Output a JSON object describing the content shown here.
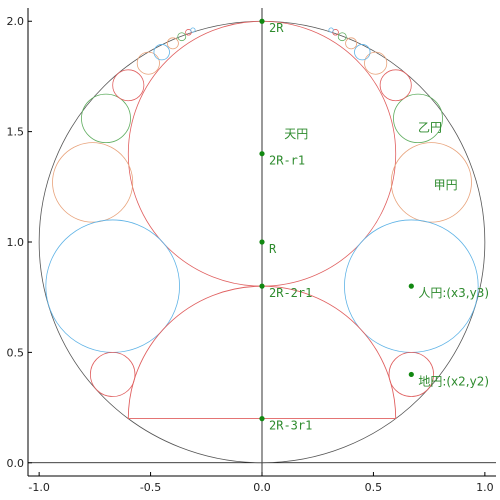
{
  "chart_data": {
    "type": "scatter",
    "title": "",
    "xlabel": "",
    "ylabel": "",
    "xlim": [
      -1.05,
      1.05
    ],
    "ylim": [
      -0.06,
      2.06
    ],
    "grid": false,
    "x_ticks": [
      {
        "value": -1.0,
        "label": "-1.0"
      },
      {
        "value": -0.5,
        "label": "-0.5"
      },
      {
        "value": 0.0,
        "label": "0.0"
      },
      {
        "value": 0.5,
        "label": "0.5"
      },
      {
        "value": 1.0,
        "label": "1.0"
      }
    ],
    "y_ticks": [
      {
        "value": 0.0,
        "label": "0.0"
      },
      {
        "value": 0.5,
        "label": "0.5"
      },
      {
        "value": 1.0,
        "label": "1.0"
      },
      {
        "value": 1.5,
        "label": "1.5"
      },
      {
        "value": 2.0,
        "label": "2.0"
      }
    ],
    "colors": {
      "outer": "#555555",
      "red": "#e06060",
      "blue": "#5fb3e6",
      "green": "#5fad5f",
      "orange": "#e8a27a",
      "point": "#118811",
      "label": "#2e8b2e"
    },
    "circles": [
      {
        "kind": "outer",
        "cx": 0,
        "cy": 1,
        "r": 1,
        "color_key": "outer"
      },
      {
        "kind": "tenen",
        "cx": 0,
        "cy": 1.4,
        "r": 0.6,
        "color_key": "red"
      },
      {
        "kind": "koen",
        "cx": 0.76,
        "cy": 1.27,
        "r": 0.18,
        "color_key": "orange"
      },
      {
        "kind": "koen",
        "cx": -0.76,
        "cy": 1.27,
        "r": 0.18,
        "color_key": "orange"
      },
      {
        "kind": "otsuen",
        "cx": 0.7,
        "cy": 1.56,
        "r": 0.11,
        "color_key": "green"
      },
      {
        "kind": "otsuen",
        "cx": -0.7,
        "cy": 1.56,
        "r": 0.11,
        "color_key": "green"
      },
      {
        "kind": "jinen",
        "cx": 0.67,
        "cy": 0.8,
        "r": 0.3,
        "color_key": "blue"
      },
      {
        "kind": "jinen",
        "cx": -0.67,
        "cy": 0.8,
        "r": 0.3,
        "color_key": "blue"
      },
      {
        "kind": "chien",
        "cx": 0.67,
        "cy": 0.4,
        "r": 0.1,
        "color_key": "red"
      },
      {
        "kind": "chien",
        "cx": -0.67,
        "cy": 0.4,
        "r": 0.1,
        "color_key": "red"
      },
      {
        "kind": "chain",
        "cx": 0.6,
        "cy": 1.71,
        "r": 0.07,
        "color_key": "red"
      },
      {
        "kind": "chain",
        "cx": -0.6,
        "cy": 1.71,
        "r": 0.07,
        "color_key": "red"
      },
      {
        "kind": "chain",
        "cx": 0.51,
        "cy": 1.81,
        "r": 0.05,
        "color_key": "orange"
      },
      {
        "kind": "chain",
        "cx": -0.51,
        "cy": 1.81,
        "r": 0.05,
        "color_key": "orange"
      },
      {
        "kind": "chain",
        "cx": 0.45,
        "cy": 1.86,
        "r": 0.035,
        "color_key": "blue"
      },
      {
        "kind": "chain",
        "cx": -0.45,
        "cy": 1.86,
        "r": 0.035,
        "color_key": "blue"
      },
      {
        "kind": "chain",
        "cx": 0.4,
        "cy": 1.9,
        "r": 0.025,
        "color_key": "orange"
      },
      {
        "kind": "chain",
        "cx": -0.4,
        "cy": 1.9,
        "r": 0.025,
        "color_key": "orange"
      },
      {
        "kind": "chain",
        "cx": 0.36,
        "cy": 1.93,
        "r": 0.018,
        "color_key": "green"
      },
      {
        "kind": "chain",
        "cx": -0.36,
        "cy": 1.93,
        "r": 0.018,
        "color_key": "green"
      },
      {
        "kind": "chain",
        "cx": 0.33,
        "cy": 1.95,
        "r": 0.013,
        "color_key": "red"
      },
      {
        "kind": "chain",
        "cx": -0.33,
        "cy": 1.95,
        "r": 0.013,
        "color_key": "red"
      },
      {
        "kind": "chain",
        "cx": 0.31,
        "cy": 1.96,
        "r": 0.01,
        "color_key": "blue"
      },
      {
        "kind": "chain",
        "cx": -0.31,
        "cy": 1.96,
        "r": 0.01,
        "color_key": "blue"
      }
    ],
    "semicircle": {
      "cx": 0,
      "cy": 0.2,
      "r": 0.6,
      "color_key": "red"
    },
    "points": [
      {
        "x": 0,
        "y": 2.0,
        "label": "2R"
      },
      {
        "x": 0,
        "y": 1.4,
        "label": "2R-r1"
      },
      {
        "x": 0,
        "y": 1.0,
        "label": "R"
      },
      {
        "x": 0,
        "y": 0.8,
        "label": "2R-2r1"
      },
      {
        "x": 0,
        "y": 0.2,
        "label": "2R-3r1"
      },
      {
        "x": 0.67,
        "y": 0.8,
        "label": "人円:(x3,y3)"
      },
      {
        "x": 0.67,
        "y": 0.4,
        "label": "地円:(x2,y2)"
      }
    ],
    "circle_labels": [
      {
        "x": 0.1,
        "y": 1.47,
        "label": "天円"
      },
      {
        "x": 0.7,
        "y": 1.5,
        "label": "乙円"
      },
      {
        "x": 0.77,
        "y": 1.24,
        "label": "甲円"
      }
    ]
  }
}
